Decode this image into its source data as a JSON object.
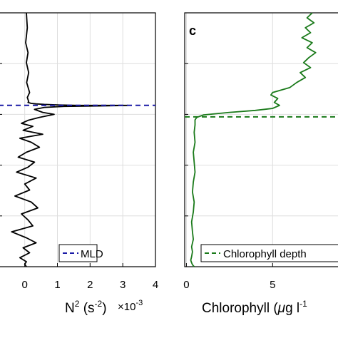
{
  "chart_data": [
    {
      "type": "line",
      "panel": "left",
      "x_ticks": [
        0,
        1,
        2,
        3,
        4
      ],
      "x_tick_labels": [
        "0",
        "1",
        "2",
        "3",
        "4"
      ],
      "xlim": [
        -0.8,
        4
      ],
      "xlabel_main": "N",
      "xlabel_sup": "2",
      "xlabel_units_open": " (s",
      "xlabel_units_sup": "-2",
      "xlabel_units_close": ")",
      "multiplier_base": "×10",
      "multiplier_exp": "-3",
      "grid": true,
      "legend_position": "bottom-right",
      "series": [
        {
          "name": "",
          "color": "#000000",
          "style": "solid",
          "x": [
            0.05,
            0.08,
            0.03,
            0.1,
            0.05,
            0.12,
            0.06,
            0.15,
            0.08,
            0.12,
            0.1,
            0.2,
            0.35,
            0.6,
            1.0,
            1.6,
            2.2,
            2.8,
            3.15,
            2.4,
            1.2,
            0.6,
            0.3,
            0.55,
            0.9,
            0.45,
            0.1,
            -0.1,
            0.25,
            -0.05,
            0.55,
            -0.15,
            0.2,
            0.45,
            0.05,
            -0.2,
            0.3,
            0.1,
            -0.25,
            0.35,
            0.0,
            0.15,
            -0.3,
            0.2,
            0.4,
            -0.1,
            0.1,
            0.25,
            -0.4,
            0.05,
            0.35,
            -0.05,
            0.15,
            -0.15,
            0.05,
            0.0,
            0.05
          ],
          "y": [
            0,
            30,
            60,
            80,
            100,
            120,
            140,
            160,
            170,
            178,
            180,
            182,
            183,
            184,
            185,
            186,
            186,
            186,
            186,
            187,
            188,
            190,
            194,
            200,
            204,
            210,
            216,
            222,
            228,
            236,
            244,
            252,
            260,
            270,
            280,
            290,
            300,
            310,
            320,
            332,
            344,
            356,
            368,
            380,
            392,
            404,
            416,
            428,
            440,
            452,
            462,
            472,
            482,
            492,
            500,
            505,
            510
          ]
        },
        {
          "name": "MLD",
          "color": "#1a1aa6",
          "style": "dashed",
          "x": [
            -0.8,
            4
          ],
          "y": [
            186,
            186
          ]
        }
      ],
      "legend": [
        "MLD"
      ]
    },
    {
      "type": "line",
      "panel": "right",
      "label": "c",
      "x_ticks": [
        0,
        5
      ],
      "x_tick_labels": [
        "0",
        "5"
      ],
      "xlim": [
        -0.1,
        9
      ],
      "xlabel_pre": "Chlorophyll (",
      "xlabel_mu": "μ",
      "xlabel_post": "g l",
      "xlabel_sup": "-1",
      "grid": true,
      "legend_position": "bottom-right",
      "series": [
        {
          "name": "",
          "color": "#1a7a1a",
          "style": "solid",
          "x": [
            7.3,
            7.0,
            7.4,
            6.9,
            7.2,
            6.7,
            7.3,
            7.0,
            7.5,
            7.1,
            6.8,
            7.2,
            6.6,
            6.9,
            6.4,
            6.0,
            5.5,
            5.0,
            4.9,
            5.3,
            5.1,
            5.4,
            5.0,
            4.0,
            2.5,
            1.0,
            0.6,
            0.5,
            0.5,
            0.45,
            0.5,
            0.4,
            0.45,
            0.5,
            0.4,
            0.35,
            0.45,
            0.4,
            0.3,
            0.35,
            0.4,
            0.3,
            0.35,
            0.3,
            0.25,
            0.3,
            0.35,
            0.4,
            0.45
          ],
          "y": [
            0,
            10,
            20,
            30,
            40,
            50,
            60,
            70,
            80,
            90,
            100,
            110,
            120,
            130,
            140,
            150,
            155,
            160,
            165,
            172,
            180,
            186,
            192,
            196,
            200,
            205,
            210,
            215,
            225,
            240,
            260,
            280,
            300,
            320,
            340,
            360,
            380,
            400,
            420,
            440,
            455,
            470,
            480,
            490,
            497,
            502,
            506,
            508,
            510
          ]
        },
        {
          "name": "Chlorophyll depth",
          "color": "#1a7a1a",
          "style": "dashed",
          "x": [
            -0.1,
            9
          ],
          "y": [
            209,
            209
          ]
        }
      ],
      "legend": [
        "Chlorophyll depth"
      ]
    }
  ]
}
